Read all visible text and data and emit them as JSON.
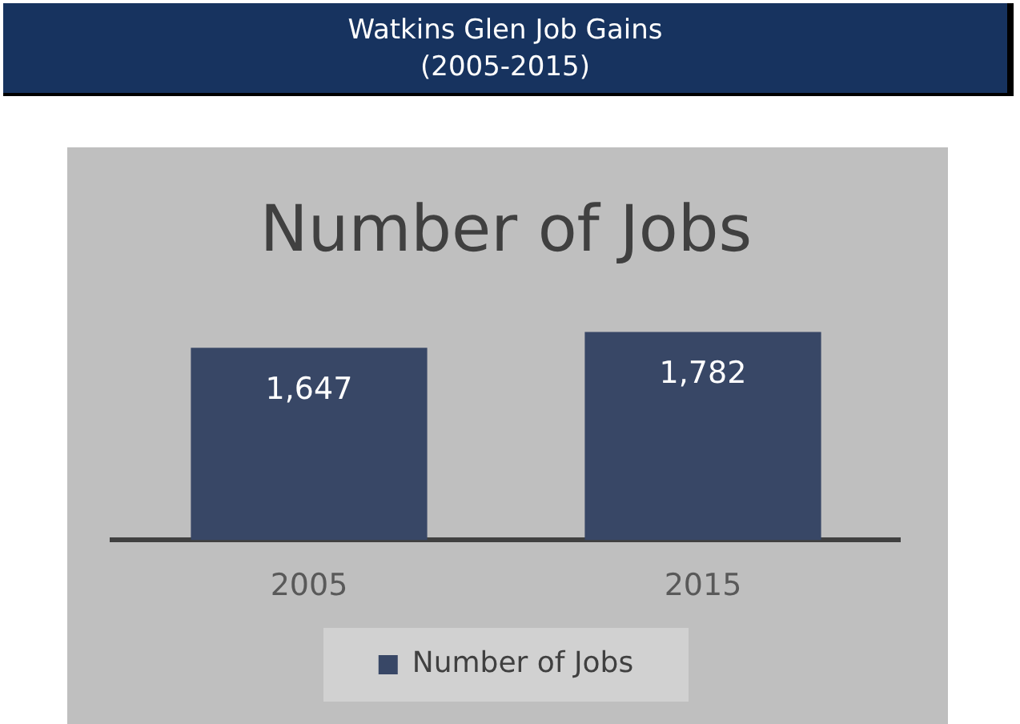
{
  "chart_data": {
    "type": "bar",
    "title": "Watkins Glen Job Gains\n(2005-2015)",
    "subtitle": "Number of Jobs",
    "categories": [
      "2005",
      "2015"
    ],
    "series": [
      {
        "name": "Number of Jobs",
        "color": "#384766",
        "values": [
          1647,
          1782
        ],
        "value_labels": [
          "1,647",
          "1,782"
        ]
      }
    ],
    "tick_labels": "x",
    "legend": "bottom"
  }
}
